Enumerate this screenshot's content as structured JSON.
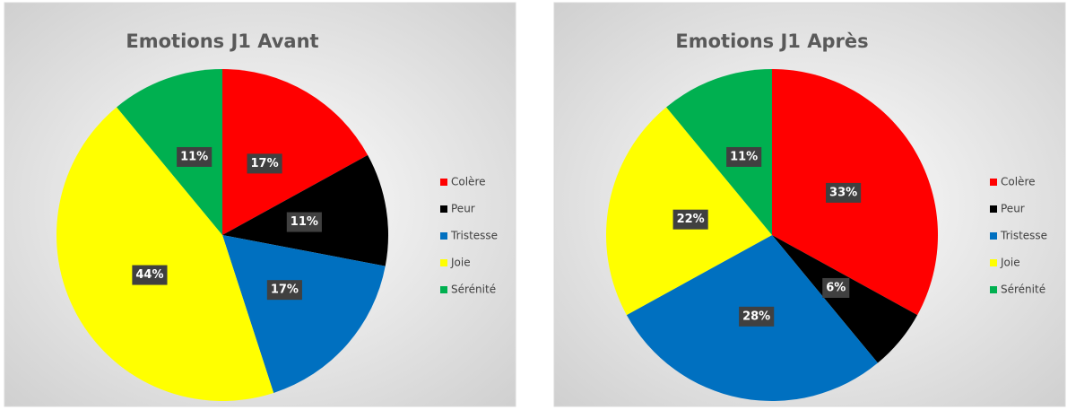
{
  "chart_data": [
    {
      "type": "pie",
      "title": "Emotions J1 Avant",
      "categories": [
        "Colère",
        "Peur",
        "Tristesse",
        "Joie",
        "Sérénité"
      ],
      "values": [
        17,
        11,
        17,
        44,
        11
      ],
      "value_labels": [
        "17%",
        "11%",
        "17%",
        "44%",
        "11%"
      ],
      "colors": [
        "#ff0000",
        "#000000",
        "#0070c0",
        "#ffff00",
        "#00b050"
      ],
      "legend": "right"
    },
    {
      "type": "pie",
      "title": "Emotions J1 Après",
      "categories": [
        "Colère",
        "Peur",
        "Tristesse",
        "Joie",
        "Sérénité"
      ],
      "values": [
        33,
        6,
        28,
        22,
        11
      ],
      "value_labels": [
        "33%",
        "6%",
        "28%",
        "22%",
        "11%"
      ],
      "colors": [
        "#ff0000",
        "#000000",
        "#0070c0",
        "#ffff00",
        "#00b050"
      ],
      "legend": "right"
    }
  ]
}
